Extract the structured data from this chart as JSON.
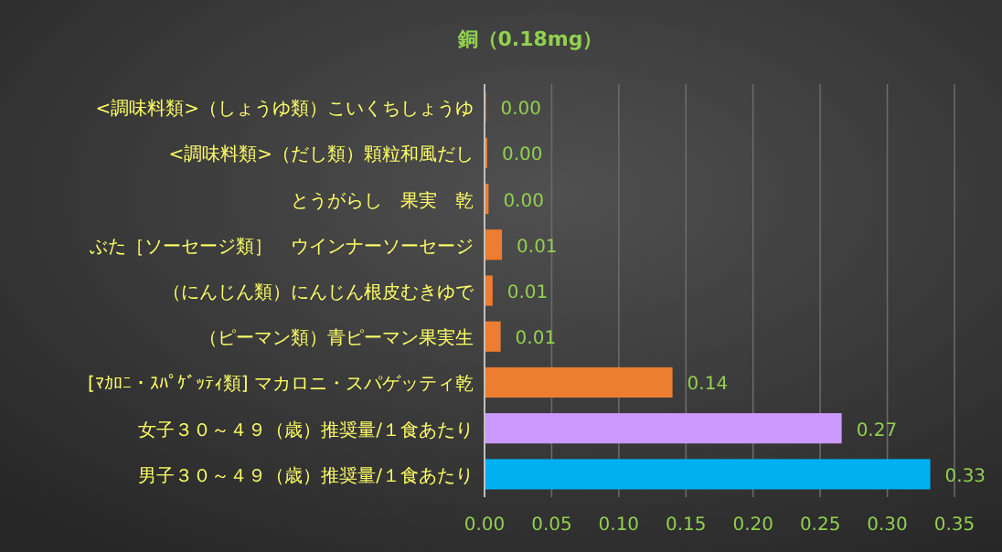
{
  "chart_data": {
    "type": "bar",
    "orientation": "horizontal",
    "title": "銅（0.18mg）",
    "categories": [
      "<調味料類>（しょうゆ類）こいくちしょうゆ",
      "<調味料類>（だし類）顆粒和風だし",
      "とうがらし　果実　乾",
      "ぶた［ソーセージ類］　ウインナーソーセージ",
      "（にんじん類）にんじん根皮むきゆで",
      "（ピーマン類）青ピーマン果実生",
      "[ﾏｶﾛﾆ・ｽﾊﾟｹﾞｯﾃｨ類] マカロニ・スパゲッティ乾",
      "女子３０～４９（歳）推奨量/１食あたり",
      "男子３０～４９（歳）推奨量/１食あたり"
    ],
    "values": [
      0.001,
      0.002,
      0.003,
      0.013,
      0.006,
      0.012,
      0.14,
      0.266,
      0.332
    ],
    "value_labels": [
      "0.00",
      "0.00",
      "0.00",
      "0.01",
      "0.01",
      "0.01",
      "0.14",
      "0.27",
      "0.33"
    ],
    "colors": [
      "#ed7d31",
      "#ed7d31",
      "#ed7d31",
      "#ed7d31",
      "#ed7d31",
      "#ed7d31",
      "#ed7d31",
      "#cc99ff",
      "#00b0f0"
    ],
    "xlim": [
      0,
      0.35
    ],
    "xticks": [
      {
        "value": 0,
        "label": "0.00"
      },
      {
        "value": 0.05,
        "label": "0.05"
      },
      {
        "value": 0.1,
        "label": "0.10"
      },
      {
        "value": 0.15,
        "label": "0.15"
      },
      {
        "value": 0.2,
        "label": "0.20"
      },
      {
        "value": 0.25,
        "label": "0.25"
      },
      {
        "value": 0.3,
        "label": "0.30"
      },
      {
        "value": 0.35,
        "label": "0.35"
      }
    ],
    "grid": "x"
  }
}
